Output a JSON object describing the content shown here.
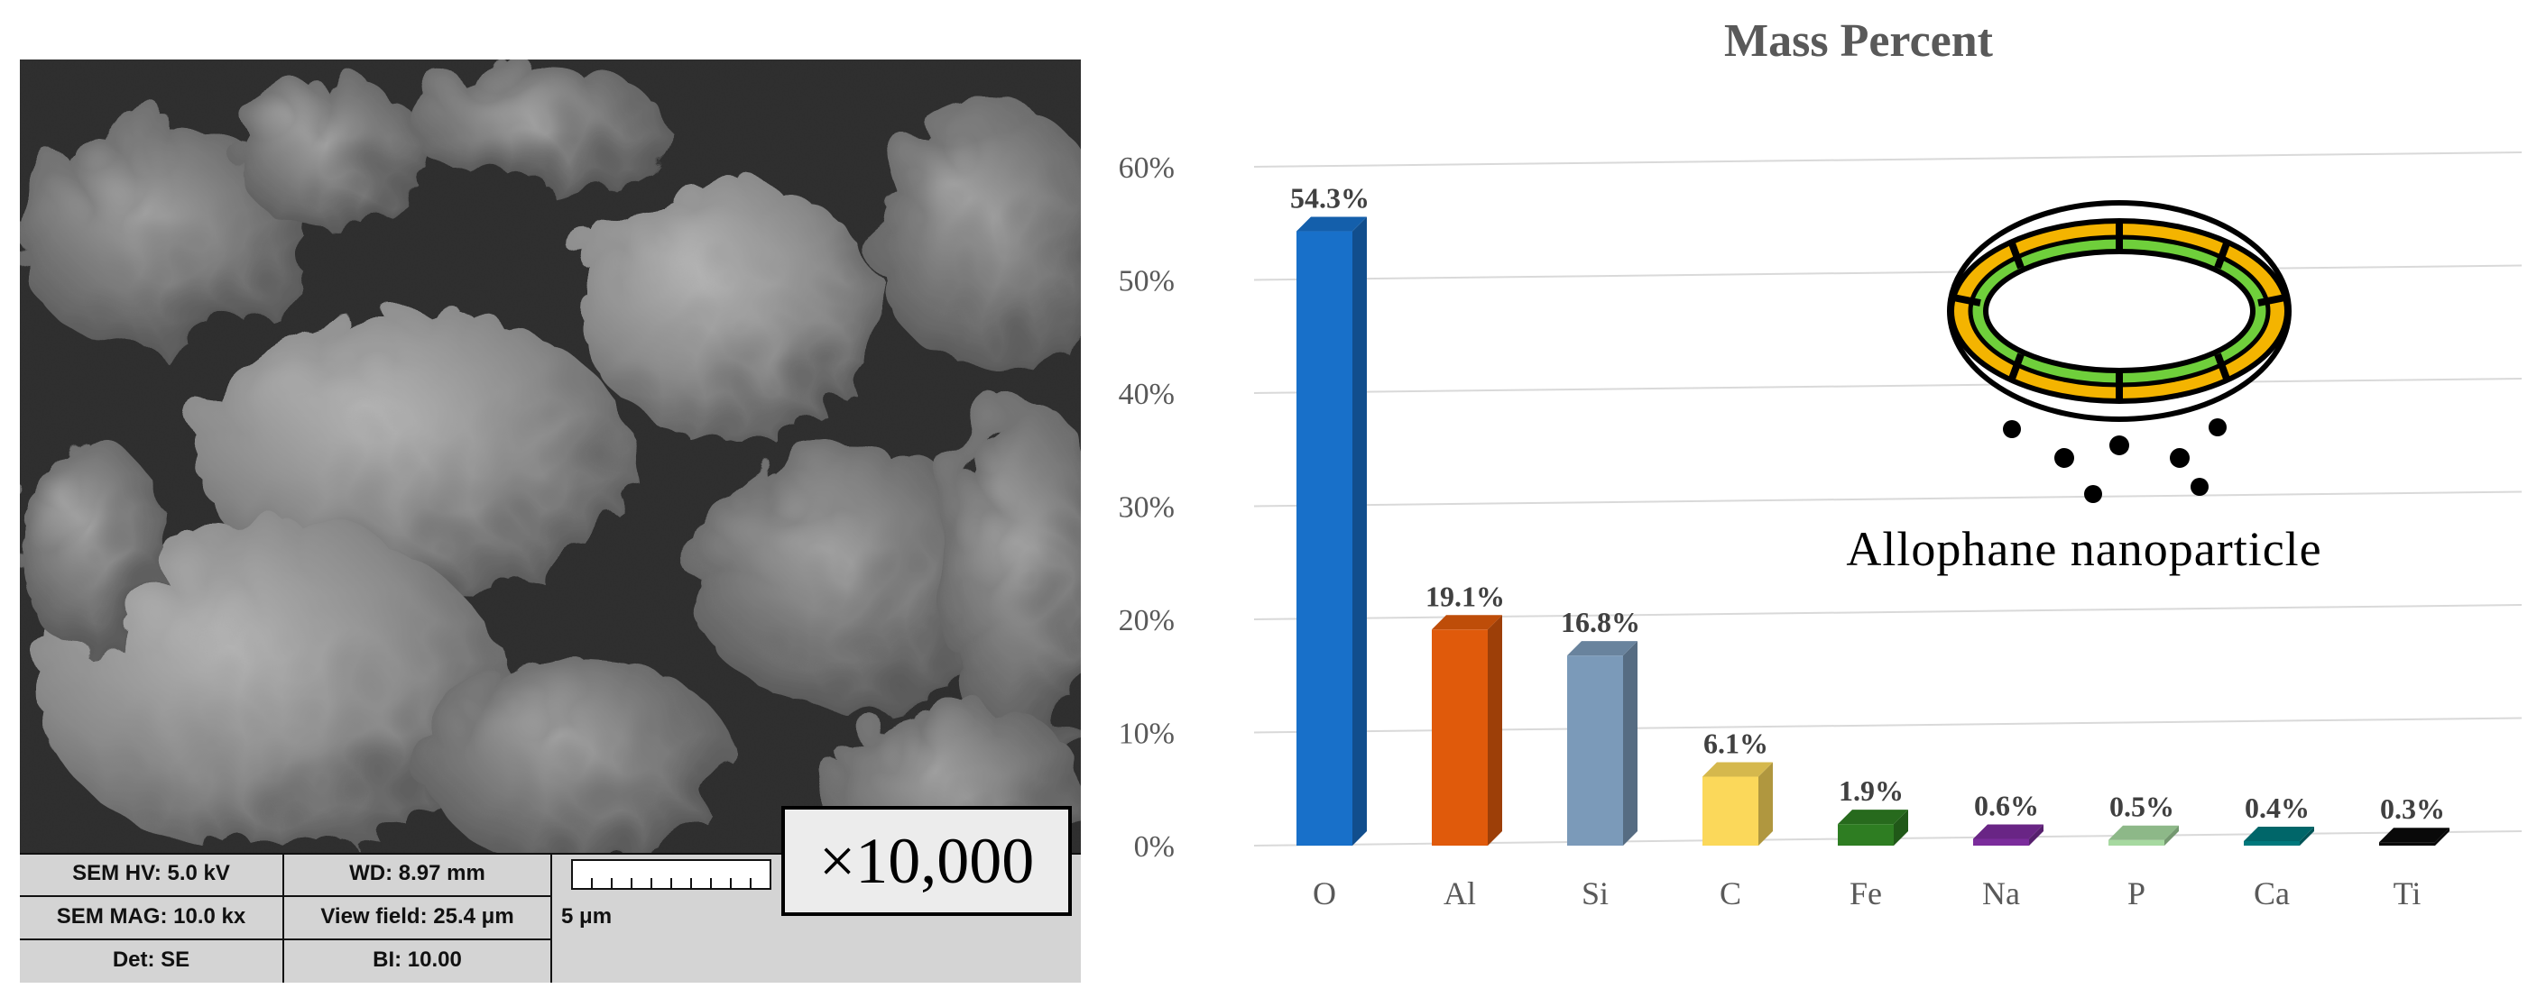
{
  "sem": {
    "info": {
      "hv": "SEM HV: 5.0 kV",
      "wd": "WD: 8.97 mm",
      "mag": "SEM MAG: 10.0 kx",
      "view_field": "View field: 25.4 μm",
      "det": "Det: SE",
      "bi": "BI: 10.00",
      "scale_bar_label": "5 μm"
    },
    "magnification": "×10,000"
  },
  "chart_data": {
    "type": "bar",
    "title": "Mass Percent",
    "xlabel": "",
    "ylabel": "",
    "ylim": [
      0,
      60
    ],
    "yticks": [
      "0%",
      "10%",
      "20%",
      "30%",
      "40%",
      "50%",
      "60%"
    ],
    "grid": true,
    "categories": [
      "O",
      "Al",
      "Si",
      "C",
      "Fe",
      "Na",
      "P",
      "Ca",
      "Ti"
    ],
    "values": [
      54.3,
      19.1,
      16.8,
      6.1,
      1.9,
      0.6,
      0.5,
      0.4,
      0.3
    ],
    "data_labels": [
      "54.3%",
      "19.1%",
      "16.8%",
      "6.1%",
      "1.9%",
      "0.6%",
      "0.5%",
      "0.4%",
      "0.3%"
    ],
    "colors": [
      "#1870c9",
      "#e05a0b",
      "#7b9ab9",
      "#fbd85a",
      "#2e7d22",
      "#7b2c9c",
      "#a6d9a0",
      "#00787c",
      "#0a0a0a"
    ],
    "annotations": [
      "Allophane nanoparticle"
    ]
  },
  "inset": {
    "caption": "Allophane nanoparticle",
    "colors": {
      "outer_ring": "#f4b400",
      "inner_ring": "#6fcf3b",
      "outline": "#000000"
    }
  }
}
